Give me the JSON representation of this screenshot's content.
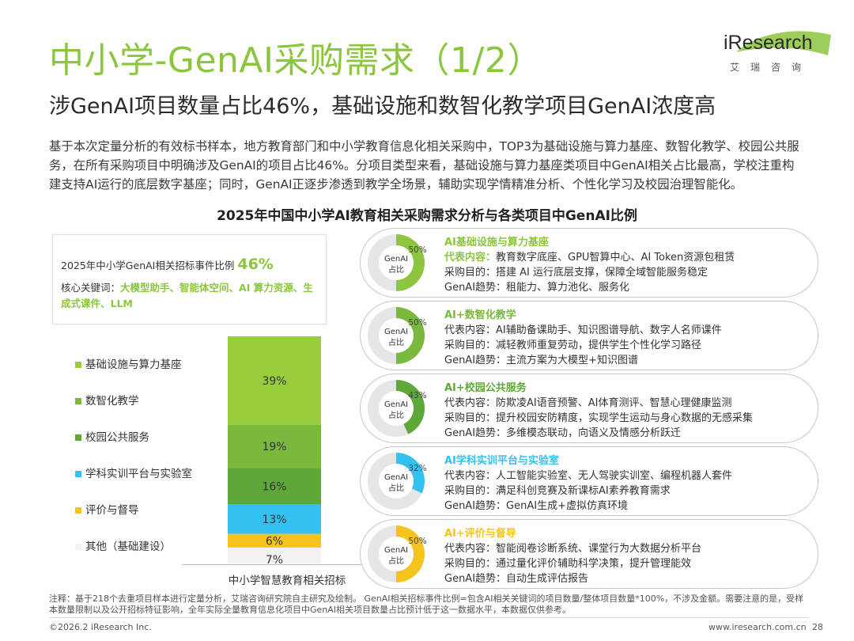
{
  "header": {
    "title": "中小学-GenAI采购需求（1/2）",
    "subtitle": "涉GenAI项目数量占比46%，基础设施和数智化教学项目GenAI浓度高",
    "logo_word": "iResearch",
    "logo_sub": "艾瑞咨询"
  },
  "intro": "基于本次定量分析的有效标书样本，地方教育部门和中小学教育信息化相关采购中，TOP3为基础设施与算力基座、数智化教学、校园公共服务，在所有采购项目中明确涉及GenAI的项目占比46%。分项目类型来看，基础设施与算力基座类项目中GenAI相关占比最高，学校注重构建支持AI运行的底层数字基座；同时，GenAI正逐步渗透到教学全场景，辅助实现学情精准分析、个性化学习及校园治理智能化。",
  "summary": {
    "line1_label": "2025年中小学GenAI相关招标事件比例",
    "line1_value": "46%",
    "line2_label": "核心关键词：",
    "line2_keywords": "大模型助手、智能体空间、AI 算力资源、生成式课件、LLM"
  },
  "chart_data": [
    {
      "type": "bar",
      "title": "2025年中国中小学AI教育相关采购需求分析与各类项目中GenAI比例",
      "categories": [
        "中小学智慧教育相关招标"
      ],
      "series": [
        {
          "name": "基础设施与算力基座",
          "values": [
            39
          ],
          "label": "39%",
          "color": "#9acd3c"
        },
        {
          "name": "数智化教学",
          "values": [
            19
          ],
          "label": "19%",
          "color": "#7ab83e"
        },
        {
          "name": "校园公共服务",
          "values": [
            16
          ],
          "label": "16%",
          "color": "#5ea83a"
        },
        {
          "name": "学科实训平台与实验室",
          "values": [
            13
          ],
          "label": "13%",
          "color": "#33c1f0"
        },
        {
          "name": "评价与督导",
          "values": [
            6
          ],
          "label": "6%",
          "color": "#f5c41c"
        },
        {
          "name": "其他（基础建设）",
          "values": [
            7
          ],
          "label": "7%",
          "color": "#f2f2f2"
        }
      ],
      "ylim": [
        0,
        100
      ]
    },
    {
      "type": "pie",
      "ring_label": "GenAI占比",
      "items": [
        {
          "name": "AI基础设施与算力基座",
          "value": 50,
          "label": "50%",
          "color": "#8cc63f"
        },
        {
          "name": "AI+数智化教学",
          "value": 50,
          "label": "50%",
          "color": "#7ab83e"
        },
        {
          "name": "AI+校园公共服务",
          "value": 43,
          "label": "43%",
          "color": "#5ea83a"
        },
        {
          "name": "AI学科实训平台与实验室",
          "value": 32,
          "label": "32%",
          "color": "#33c1f0"
        },
        {
          "name": "AI+评价与督导",
          "value": 50,
          "label": "50%",
          "color": "#f5c41c"
        }
      ]
    }
  ],
  "ring_label_line1": "GenAI",
  "ring_label_line2": "占比",
  "cards": [
    {
      "title": "AI基础设施与算力基座",
      "title_color": "#8cc63f",
      "l1_label": "代表内容：",
      "l1_text": "教育数字底座、GPU智算中心、AI Token资源包租赁",
      "l2_label": "采购目的：",
      "l2_text": "搭建 AI 运行底层支撑，保障全域智能服务稳定",
      "l3_label": "GenAI趋势：",
      "l3_text": "租能力、算力池化、服务化"
    },
    {
      "title": "AI+数智化教学",
      "title_color": "#7ab83e",
      "l1_label": "代表内容：",
      "l1_text": "AI辅助备课助手、知识图谱导航、数字人名师课件",
      "l2_label": "采购目的：",
      "l2_text": "减轻教师重复劳动，提供学生个性化学习路径",
      "l3_label": "GenAI趋势：",
      "l3_text": "主流方案为大模型+知识图谱"
    },
    {
      "title": "AI+校园公共服务",
      "title_color": "#5ea83a",
      "l1_label": "代表内容：",
      "l1_text": "防欺凌AI语音预警、AI体育测评、智慧心理健康监测",
      "l2_label": "采购目的：",
      "l2_text": "提升校园安防精度，实现学生运动与身心数据的无感采集",
      "l3_label": "GenAI趋势：",
      "l3_text": "多维模态联动，向语义及情感分析跃迁"
    },
    {
      "title": "AI学科实训平台与实验室",
      "title_color": "#33c1f0",
      "l1_label": "代表内容：",
      "l1_text": "人工智能实验室、无人驾驶实训室、编程机器人套件",
      "l2_label": "采购目的：",
      "l2_text": "满足科创竞赛及新课标AI素养教育需求",
      "l3_label": "GenAI趋势：",
      "l3_text": "GenAI生成+虚拟仿真环境"
    },
    {
      "title": "AI+评价与督导",
      "title_color": "#f5c41c",
      "l1_label": "代表内容：",
      "l1_text": "智能阅卷诊断系统、课堂行为大数据分析平台",
      "l2_label": "采购目的：",
      "l2_text": "通过量化评价辅助科学决策，提升管理能效",
      "l3_label": "GenAI趋势：",
      "l3_text": "自动生成评估报告"
    }
  ],
  "footer": {
    "note": "注释：基于218个去重项目样本进行定量分析，艾瑞咨询研究院自主研究及绘制。 GenAI相关招标事件比例=包含AI相关关键词的项目数量/整体项目数量*100%，不涉及金额。需要注意的是，受样本数量限制以及公开招标特征影响，全年实际全量教育信息化项目中GenAI相关项目数量占比预计低于这一数据水平，本数据仅供参考。",
    "copyright": "©2026.2 iResearch Inc.",
    "website": "www.iresearch.com.cn",
    "page": "28"
  }
}
